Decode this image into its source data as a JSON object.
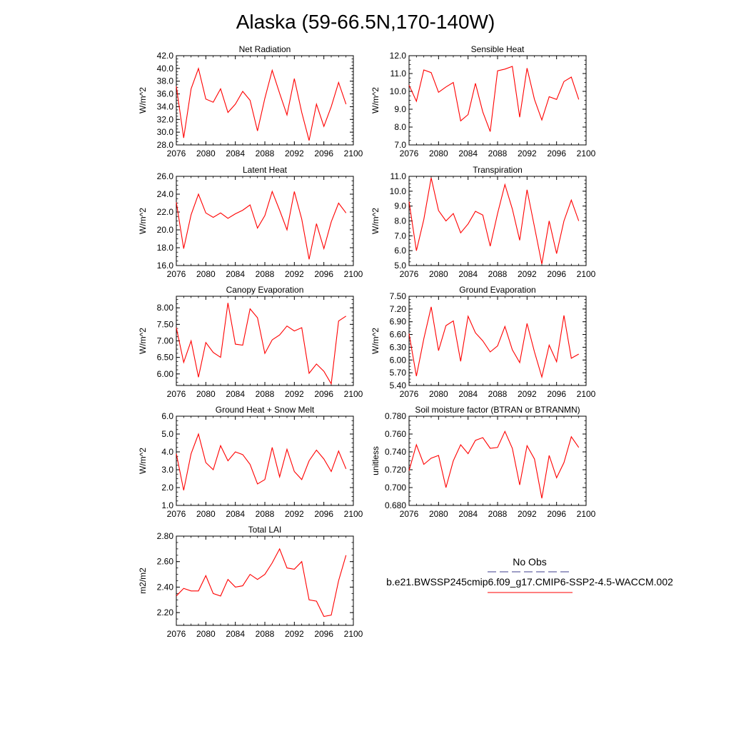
{
  "figure": {
    "title": "Alaska (59-66.5N,170-140W)",
    "legend": [
      {
        "label": "No Obs",
        "color": "#3c3c8c",
        "dash": true
      },
      {
        "label": "b.e21.BWSSP245cmip6.f09_g17.CMIP6-SSP2-4.5-WACCM.002",
        "color": "#ff0000",
        "dash": false
      }
    ]
  },
  "chart_data": [
    {
      "type": "line",
      "title": "Net Radiation",
      "ylabel": "W/m^2",
      "ylim": [
        28.0,
        42.0
      ],
      "yticks": [
        "28.0",
        "30.0",
        "32.0",
        "34.0",
        "36.0",
        "38.0",
        "40.0",
        "42.0"
      ],
      "xlim": [
        2076,
        2100
      ],
      "xticks": [
        "2076",
        "2080",
        "2084",
        "2088",
        "2092",
        "2096",
        "2100"
      ],
      "x": [
        2076,
        2077,
        2078,
        2079,
        2080,
        2081,
        2082,
        2083,
        2084,
        2085,
        2086,
        2087,
        2088,
        2089,
        2090,
        2091,
        2092,
        2093,
        2094,
        2095,
        2096,
        2097,
        2098,
        2099
      ],
      "series": [
        {
          "color": "#ff0000",
          "values": [
            37.2,
            29.1,
            36.8,
            40.0,
            35.2,
            34.7,
            36.8,
            33.1,
            34.4,
            36.4,
            35.0,
            30.2,
            35.3,
            39.7,
            36.1,
            32.7,
            38.4,
            33.1,
            28.7,
            34.4,
            30.9,
            34.0,
            37.8,
            34.4
          ]
        }
      ]
    },
    {
      "type": "line",
      "title": "Sensible Heat",
      "ylabel": "W/m^2",
      "ylim": [
        7.0,
        12.0
      ],
      "yticks": [
        "7.0",
        "8.0",
        "9.0",
        "10.0",
        "11.0",
        "12.0"
      ],
      "xlim": [
        2076,
        2100
      ],
      "xticks": [
        "2076",
        "2080",
        "2084",
        "2088",
        "2092",
        "2096",
        "2100"
      ],
      "x": [
        2076,
        2077,
        2078,
        2079,
        2080,
        2081,
        2082,
        2083,
        2084,
        2085,
        2086,
        2087,
        2088,
        2089,
        2090,
        2091,
        2092,
        2093,
        2094,
        2095,
        2096,
        2097,
        2098,
        2099
      ],
      "series": [
        {
          "color": "#ff0000",
          "values": [
            10.35,
            9.45,
            11.2,
            11.05,
            9.95,
            10.25,
            10.5,
            8.35,
            8.7,
            10.45,
            8.85,
            7.75,
            11.15,
            11.25,
            11.4,
            8.55,
            11.3,
            9.55,
            8.4,
            9.7,
            9.55,
            10.55,
            10.8,
            9.55
          ]
        }
      ]
    },
    {
      "type": "line",
      "title": "Latent Heat",
      "ylabel": "W/m^2",
      "ylim": [
        16.0,
        26.0
      ],
      "yticks": [
        "16.0",
        "18.0",
        "20.0",
        "22.0",
        "24.0",
        "26.0"
      ],
      "xlim": [
        2076,
        2100
      ],
      "xticks": [
        "2076",
        "2080",
        "2084",
        "2088",
        "2092",
        "2096",
        "2100"
      ],
      "x": [
        2076,
        2077,
        2078,
        2079,
        2080,
        2081,
        2082,
        2083,
        2084,
        2085,
        2086,
        2087,
        2088,
        2089,
        2090,
        2091,
        2092,
        2093,
        2094,
        2095,
        2096,
        2097,
        2098,
        2099
      ],
      "series": [
        {
          "color": "#ff0000",
          "values": [
            23.1,
            17.9,
            21.7,
            24.0,
            21.9,
            21.4,
            21.9,
            21.3,
            21.8,
            22.2,
            22.8,
            20.2,
            21.6,
            24.3,
            22.2,
            20.0,
            24.3,
            21.2,
            16.7,
            20.7,
            17.9,
            20.9,
            23.0,
            21.9
          ]
        }
      ]
    },
    {
      "type": "line",
      "title": "Transpiration",
      "ylabel": "W/m^2",
      "ylim": [
        5.0,
        11.0
      ],
      "yticks": [
        "5.0",
        "6.0",
        "7.0",
        "8.0",
        "9.0",
        "10.0",
        "11.0"
      ],
      "xlim": [
        2076,
        2100
      ],
      "xticks": [
        "2076",
        "2080",
        "2084",
        "2088",
        "2092",
        "2096",
        "2100"
      ],
      "x": [
        2076,
        2077,
        2078,
        2079,
        2080,
        2081,
        2082,
        2083,
        2084,
        2085,
        2086,
        2087,
        2088,
        2089,
        2090,
        2091,
        2092,
        2093,
        2094,
        2095,
        2096,
        2097,
        2098,
        2099
      ],
      "series": [
        {
          "color": "#ff0000",
          "values": [
            9.3,
            6.0,
            8.1,
            10.9,
            8.7,
            8.0,
            8.5,
            7.2,
            7.8,
            8.65,
            8.4,
            6.3,
            8.5,
            10.45,
            8.8,
            6.7,
            10.1,
            7.6,
            5.1,
            8.0,
            5.8,
            8.0,
            9.4,
            8.0
          ]
        }
      ]
    },
    {
      "type": "line",
      "title": "Canopy Evaporation",
      "ylabel": "W/m^2",
      "ylim": [
        5.65,
        8.35
      ],
      "yticks": [
        "6.00",
        "6.50",
        "7.00",
        "7.50",
        "8.00"
      ],
      "ytick_values": [
        6.0,
        6.5,
        7.0,
        7.5,
        8.0
      ],
      "xlim": [
        2076,
        2100
      ],
      "xticks": [
        "2076",
        "2080",
        "2084",
        "2088",
        "2092",
        "2096",
        "2100"
      ],
      "x": [
        2076,
        2077,
        2078,
        2079,
        2080,
        2081,
        2082,
        2083,
        2084,
        2085,
        2086,
        2087,
        2088,
        2089,
        2090,
        2091,
        2092,
        2093,
        2094,
        2095,
        2096,
        2097,
        2098,
        2099
      ],
      "series": [
        {
          "color": "#ff0000",
          "values": [
            7.4,
            6.35,
            7.0,
            5.9,
            6.95,
            6.65,
            6.5,
            8.15,
            6.9,
            6.87,
            7.97,
            7.7,
            6.62,
            7.03,
            7.18,
            7.45,
            7.3,
            7.4,
            6.02,
            6.3,
            6.08,
            5.7,
            7.6,
            7.75
          ]
        }
      ]
    },
    {
      "type": "line",
      "title": "Ground Evaporation",
      "ylabel": "W/m^2",
      "ylim": [
        5.4,
        7.5
      ],
      "yticks": [
        "5.40",
        "5.70",
        "6.00",
        "6.30",
        "6.60",
        "6.90",
        "7.20",
        "7.50"
      ],
      "xlim": [
        2076,
        2100
      ],
      "xticks": [
        "2076",
        "2080",
        "2084",
        "2088",
        "2092",
        "2096",
        "2100"
      ],
      "x": [
        2076,
        2077,
        2078,
        2079,
        2080,
        2081,
        2082,
        2083,
        2084,
        2085,
        2086,
        2087,
        2088,
        2089,
        2090,
        2091,
        2092,
        2093,
        2094,
        2095,
        2096,
        2097,
        2098,
        2099
      ],
      "series": [
        {
          "color": "#ff0000",
          "values": [
            6.62,
            5.62,
            6.5,
            7.25,
            6.22,
            6.81,
            6.92,
            5.97,
            7.03,
            6.64,
            6.45,
            6.19,
            6.33,
            6.79,
            6.24,
            5.94,
            6.86,
            6.19,
            5.6,
            6.35,
            5.96,
            7.05,
            6.04,
            6.14
          ]
        }
      ]
    },
    {
      "type": "line",
      "title": "Ground Heat + Snow Melt",
      "ylabel": "W/m^2",
      "ylim": [
        1.0,
        6.0
      ],
      "yticks": [
        "1.0",
        "2.0",
        "3.0",
        "4.0",
        "5.0",
        "6.0"
      ],
      "xlim": [
        2076,
        2100
      ],
      "xticks": [
        "2076",
        "2080",
        "2084",
        "2088",
        "2092",
        "2096",
        "2100"
      ],
      "x": [
        2076,
        2077,
        2078,
        2079,
        2080,
        2081,
        2082,
        2083,
        2084,
        2085,
        2086,
        2087,
        2088,
        2089,
        2090,
        2091,
        2092,
        2093,
        2094,
        2095,
        2096,
        2097,
        2098,
        2099
      ],
      "series": [
        {
          "color": "#ff0000",
          "values": [
            3.9,
            1.85,
            3.9,
            5.0,
            3.4,
            3.0,
            4.35,
            3.5,
            4.0,
            3.85,
            3.3,
            2.2,
            2.45,
            4.25,
            2.6,
            4.15,
            2.9,
            2.45,
            3.5,
            4.1,
            3.6,
            2.9,
            4.05,
            3.05
          ]
        }
      ]
    },
    {
      "type": "line",
      "title": "Soil moisture factor (BTRAN or BTRANMN)",
      "ylabel": "unitless",
      "ylim": [
        0.68,
        0.78
      ],
      "yticks": [
        "0.680",
        "0.700",
        "0.720",
        "0.740",
        "0.760",
        "0.780"
      ],
      "xlim": [
        2076,
        2100
      ],
      "xticks": [
        "2076",
        "2080",
        "2084",
        "2088",
        "2092",
        "2096",
        "2100"
      ],
      "x": [
        2076,
        2077,
        2078,
        2079,
        2080,
        2081,
        2082,
        2083,
        2084,
        2085,
        2086,
        2087,
        2088,
        2089,
        2090,
        2091,
        2092,
        2093,
        2094,
        2095,
        2096,
        2097,
        2098,
        2099
      ],
      "series": [
        {
          "color": "#ff0000",
          "values": [
            0.719,
            0.748,
            0.726,
            0.733,
            0.736,
            0.7,
            0.73,
            0.748,
            0.738,
            0.753,
            0.756,
            0.744,
            0.745,
            0.763,
            0.744,
            0.703,
            0.747,
            0.732,
            0.688,
            0.736,
            0.711,
            0.728,
            0.757,
            0.745
          ]
        }
      ]
    },
    {
      "type": "line",
      "title": "Total LAI",
      "ylabel": "m2/m2",
      "ylim": [
        2.1,
        2.8
      ],
      "yticks": [
        "2.20",
        "2.40",
        "2.60",
        "2.80"
      ],
      "ytick_values": [
        2.2,
        2.4,
        2.6,
        2.8
      ],
      "xlim": [
        2076,
        2100
      ],
      "xticks": [
        "2076",
        "2080",
        "2084",
        "2088",
        "2092",
        "2096",
        "2100"
      ],
      "x": [
        2076,
        2077,
        2078,
        2079,
        2080,
        2081,
        2082,
        2083,
        2084,
        2085,
        2086,
        2087,
        2088,
        2089,
        2090,
        2091,
        2092,
        2093,
        2094,
        2095,
        2096,
        2097,
        2098,
        2099
      ],
      "series": [
        {
          "color": "#ff0000",
          "values": [
            2.33,
            2.39,
            2.37,
            2.37,
            2.49,
            2.35,
            2.33,
            2.46,
            2.4,
            2.41,
            2.5,
            2.46,
            2.5,
            2.59,
            2.7,
            2.55,
            2.54,
            2.6,
            2.3,
            2.29,
            2.17,
            2.18,
            2.45,
            2.65
          ]
        }
      ]
    }
  ]
}
